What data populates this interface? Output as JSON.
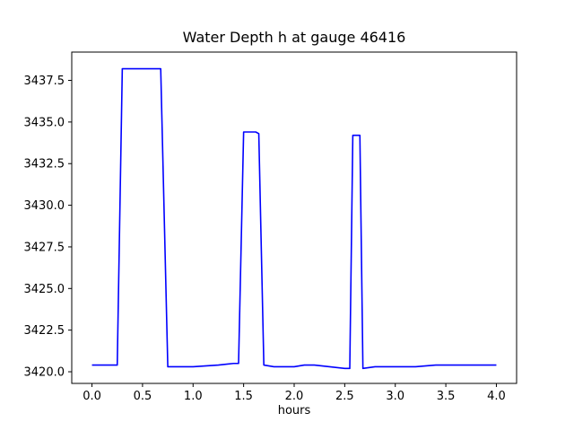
{
  "chart_data": {
    "type": "line",
    "title": "Water Depth h at gauge 46416",
    "xlabel": "hours",
    "ylabel": "",
    "grid": false,
    "legend": null,
    "xlim": [
      -0.2,
      4.2
    ],
    "ylim": [
      3419.3,
      3439.2
    ],
    "xticks": [
      0.0,
      0.5,
      1.0,
      1.5,
      2.0,
      2.5,
      3.0,
      3.5,
      4.0
    ],
    "xtick_labels": [
      "0.0",
      "0.5",
      "1.0",
      "1.5",
      "2.0",
      "2.5",
      "3.0",
      "3.5",
      "4.0"
    ],
    "yticks": [
      3420.0,
      3422.5,
      3425.0,
      3427.5,
      3430.0,
      3432.5,
      3435.0,
      3437.5
    ],
    "ytick_labels": [
      "3420.0",
      "3422.5",
      "3425.0",
      "3427.5",
      "3430.0",
      "3432.5",
      "3435.0",
      "3437.5"
    ],
    "series": [
      {
        "name": "water-depth",
        "color": "#0000ff",
        "line_width": 1.6,
        "points": [
          [
            0.0,
            3420.4
          ],
          [
            0.25,
            3420.4
          ],
          [
            0.3,
            3438.2
          ],
          [
            0.68,
            3438.2
          ],
          [
            0.75,
            3420.3
          ],
          [
            1.0,
            3420.3
          ],
          [
            1.25,
            3420.4
          ],
          [
            1.4,
            3420.5
          ],
          [
            1.45,
            3420.5
          ],
          [
            1.5,
            3434.4
          ],
          [
            1.62,
            3434.4
          ],
          [
            1.65,
            3434.3
          ],
          [
            1.7,
            3420.4
          ],
          [
            1.8,
            3420.3
          ],
          [
            2.0,
            3420.3
          ],
          [
            2.1,
            3420.4
          ],
          [
            2.2,
            3420.4
          ],
          [
            2.35,
            3420.3
          ],
          [
            2.5,
            3420.2
          ],
          [
            2.55,
            3420.2
          ],
          [
            2.58,
            3434.2
          ],
          [
            2.65,
            3434.2
          ],
          [
            2.68,
            3420.2
          ],
          [
            2.8,
            3420.3
          ],
          [
            3.0,
            3420.3
          ],
          [
            3.2,
            3420.3
          ],
          [
            3.4,
            3420.4
          ],
          [
            3.6,
            3420.4
          ],
          [
            3.8,
            3420.4
          ],
          [
            4.0,
            3420.4
          ]
        ]
      }
    ]
  }
}
